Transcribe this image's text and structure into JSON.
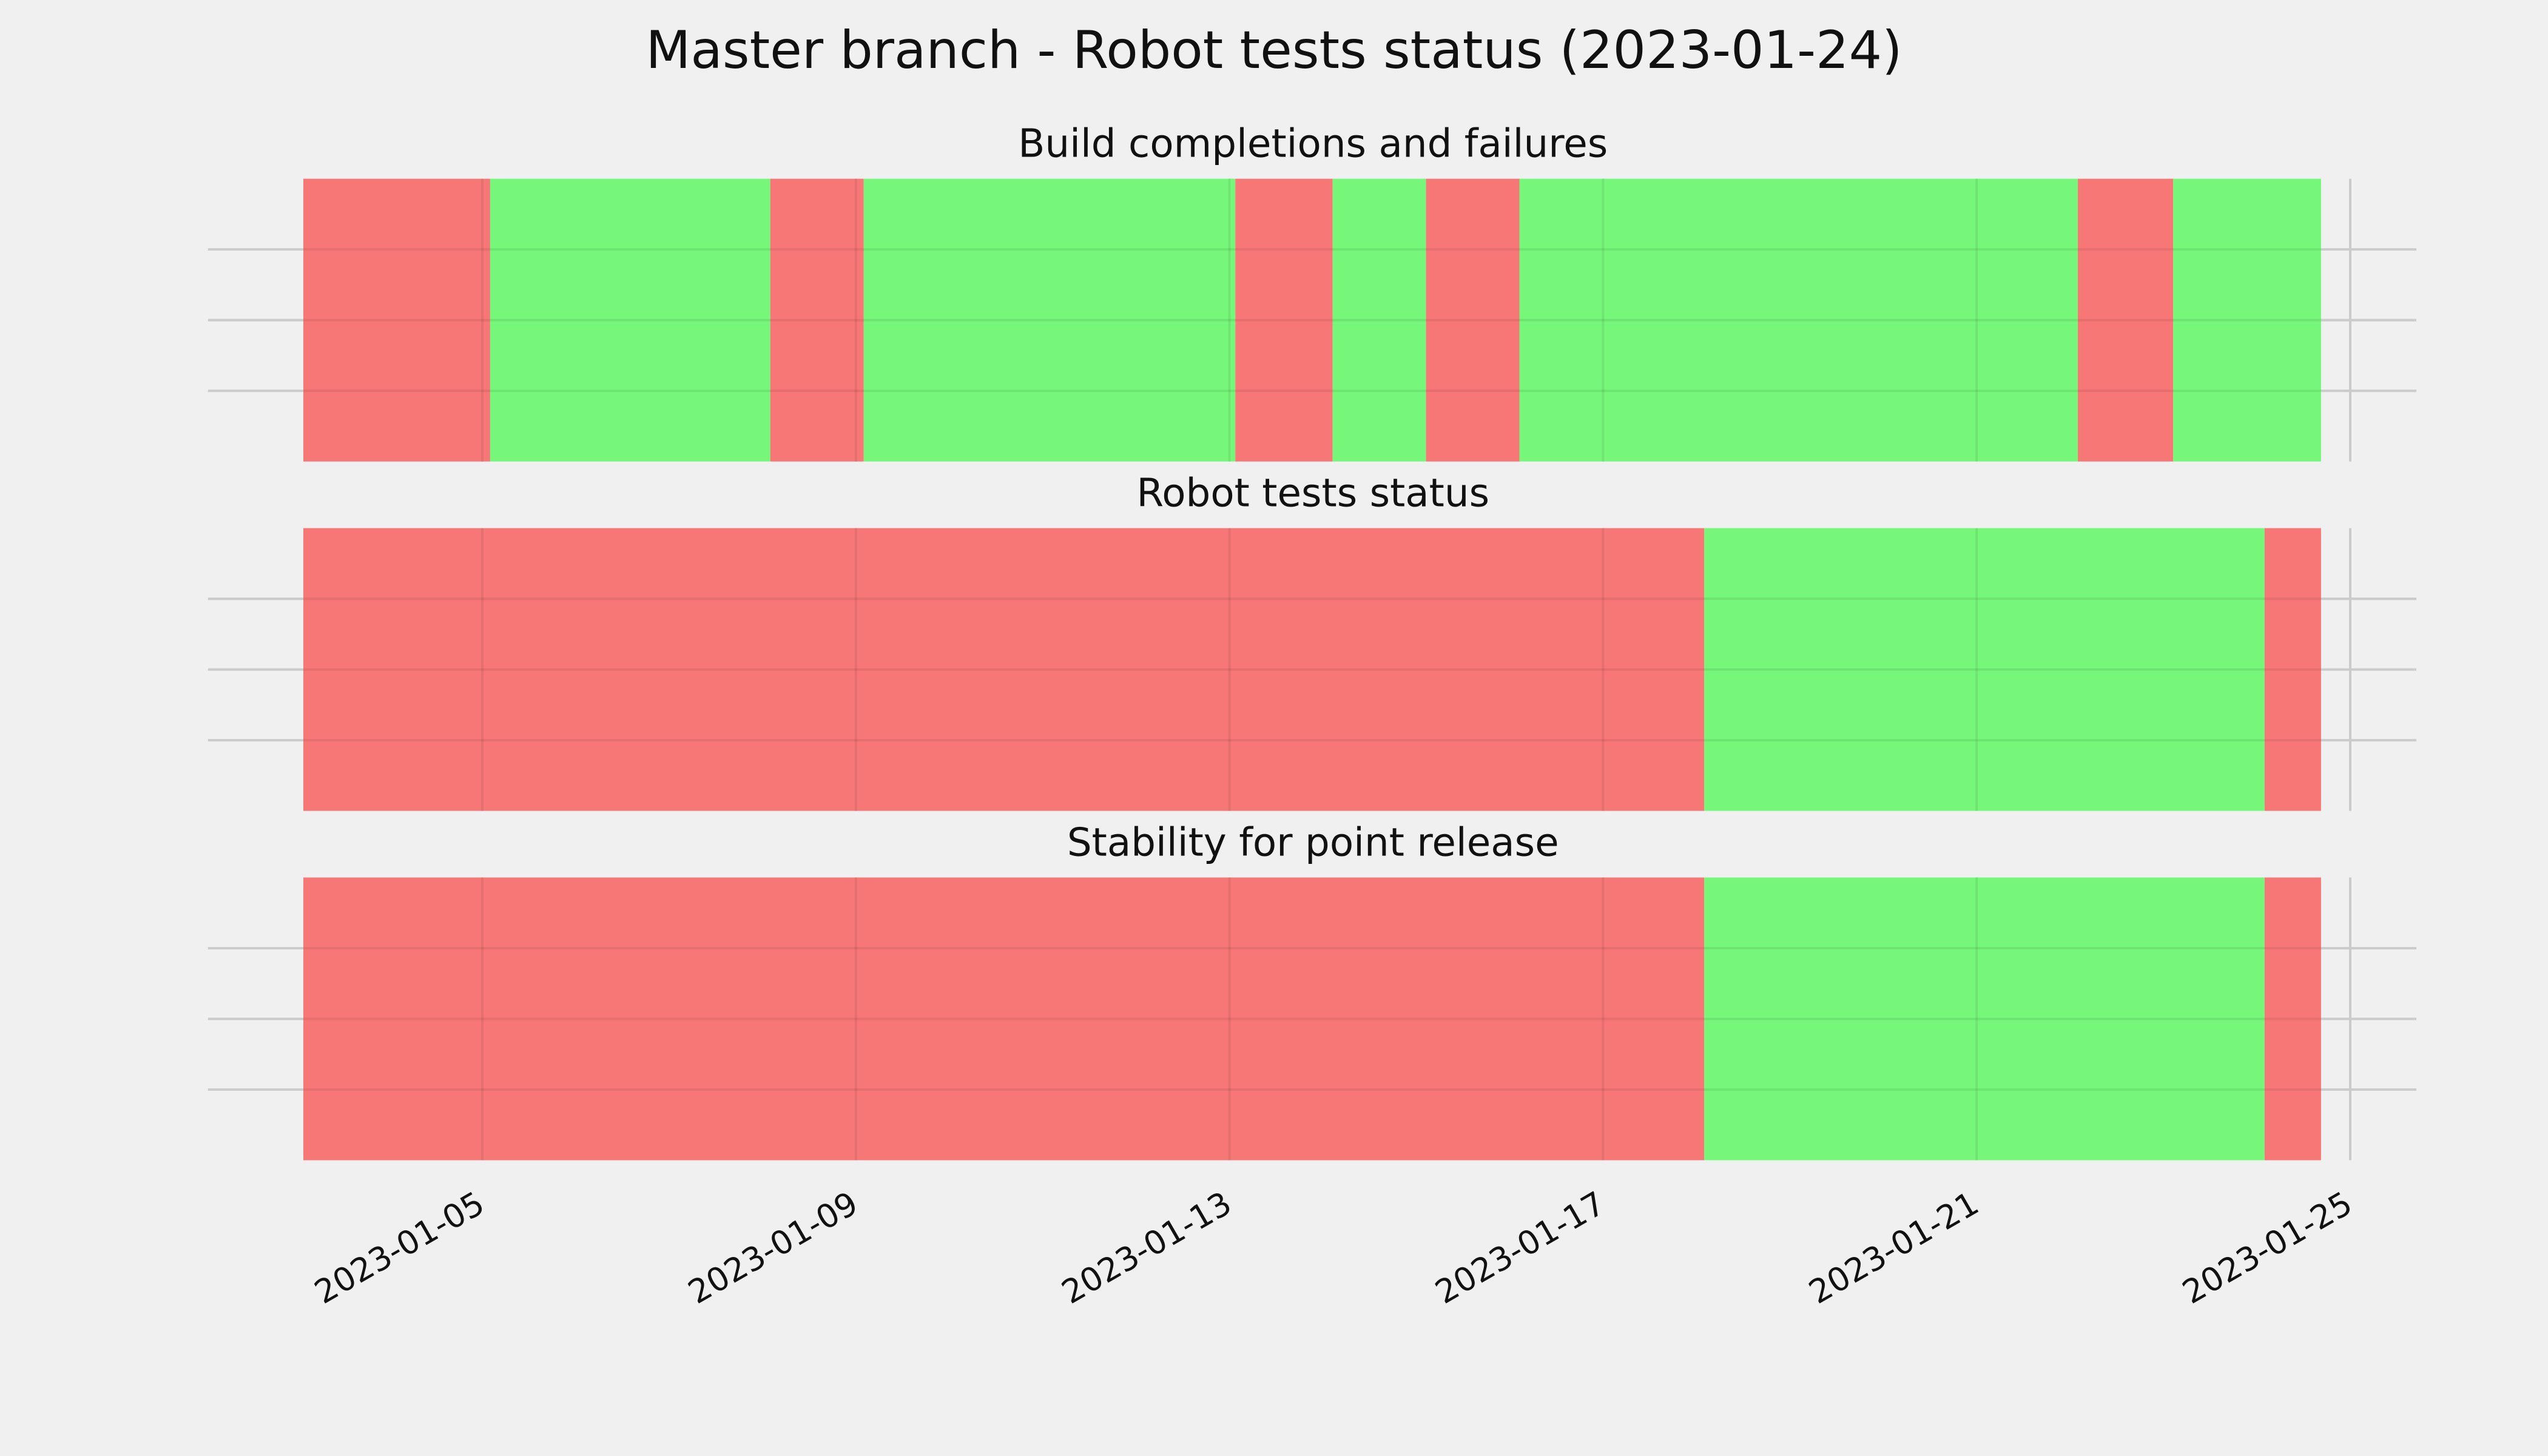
{
  "title": "Master branch - Robot tests status (2023-01-24)",
  "chart_data": [
    {
      "type": "timeline",
      "title": "Build completions and failures",
      "x": [
        "2023-01-03T02:00",
        "2023-01-05T02:00",
        "2023-01-08T02:00",
        "2023-01-09T02:00",
        "2023-01-13T01:30",
        "2023-01-14T02:30",
        "2023-01-15T02:30",
        "2023-01-16T02:30",
        "2023-01-22T02:00",
        "2023-01-23T02:30",
        "2023-01-24T16:30"
      ],
      "colors": [
        "#f77777",
        "#77f77a",
        "#f77777",
        "#77f77a",
        "#f77777",
        "#77f77a",
        "#f77777",
        "#77f77a",
        "#f77777",
        "#77f77a"
      ],
      "xlim": [
        "2023-01-02T01:30",
        "2023-01-25T17:00"
      ],
      "grid": true
    },
    {
      "type": "timeline",
      "title": "Robot tests status",
      "x": [
        "2023-01-03T02:00",
        "2023-01-18T02:00",
        "2023-01-24T02:00",
        "2023-01-24T16:30"
      ],
      "colors": [
        "#f77777",
        "#77f77a",
        "#f77777"
      ],
      "xlim": [
        "2023-01-02T01:30",
        "2023-01-25T17:00"
      ],
      "grid": true
    },
    {
      "type": "timeline",
      "title": "Stability for point release",
      "x": [
        "2023-01-03T02:00",
        "2023-01-18T02:00",
        "2023-01-24T02:00",
        "2023-01-24T16:30"
      ],
      "colors": [
        "#f77777",
        "#77f77a",
        "#f77777"
      ],
      "xlim": [
        "2023-01-02T01:30",
        "2023-01-25T17:00"
      ],
      "xticks": [
        "2023-01-05",
        "2023-01-09",
        "2023-01-13",
        "2023-01-17",
        "2023-01-21",
        "2023-01-25"
      ],
      "grid": true
    }
  ]
}
